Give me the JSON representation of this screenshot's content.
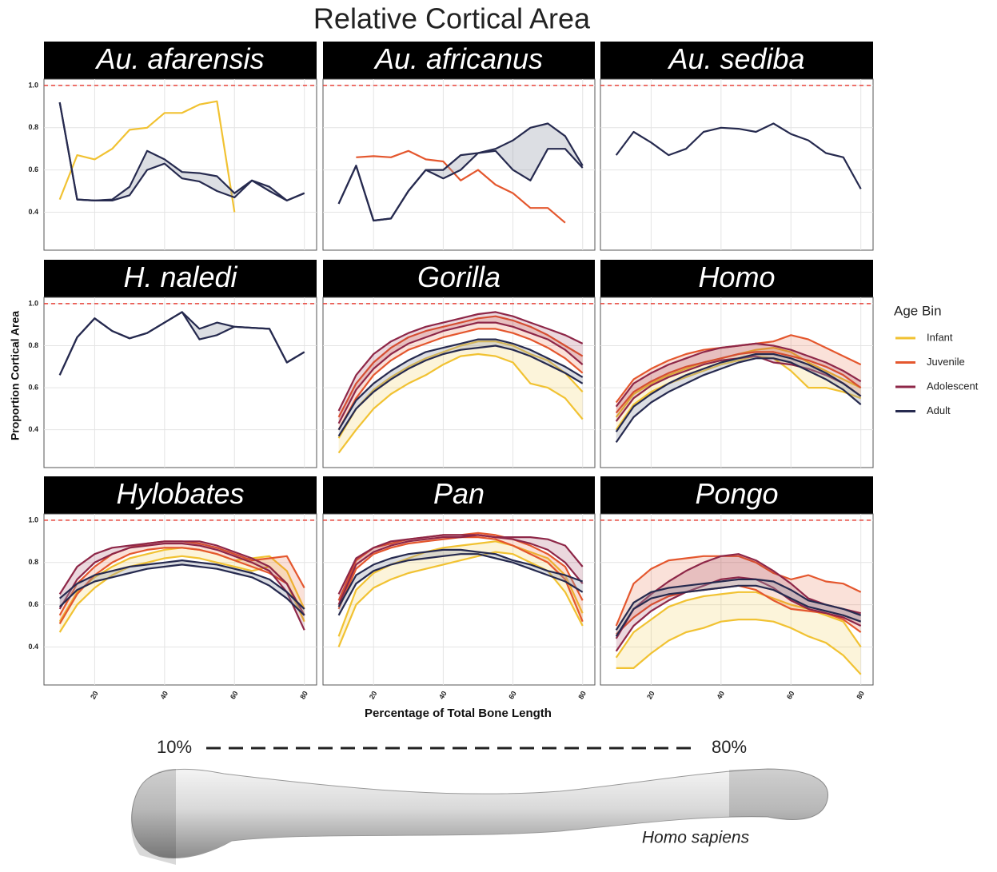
{
  "chart_data": {
    "type": "line",
    "title": "Relative Cortical Area",
    "x_label": "Percentage of Total Bone Length",
    "y_label": "Proportion Cortical Area",
    "legend_title": "Age Bin",
    "legend": [
      {
        "name": "Infant",
        "color": "#f1c232"
      },
      {
        "name": "Juvenile",
        "color": "#e4572e"
      },
      {
        "name": "Adolescent",
        "color": "#8e2748"
      },
      {
        "name": "Adult",
        "color": "#262a4f"
      }
    ],
    "grid": true,
    "hline": 1,
    "hline_color": "#e8433a",
    "xlim": [
      5.5,
      83.5
    ],
    "xticks": [
      20,
      40,
      60,
      80
    ],
    "ylim": [
      0.22,
      1.03
    ],
    "yticks": [
      0.4,
      0.6,
      0.8,
      {
        "value": 1,
        "label": "1.0"
      }
    ],
    "x": [
      10,
      15,
      20,
      25,
      30,
      35,
      40,
      45,
      50,
      55,
      60,
      65,
      70,
      75,
      80
    ],
    "facets": [
      {
        "title": "Au. afarensis",
        "series": [
          {
            "name": "Infant",
            "values": [
              0.46,
              0.67,
              0.65,
              0.7,
              0.79,
              0.8,
              0.87,
              0.87,
              0.91,
              0.925,
              0.4,
              null,
              null,
              null,
              null
            ]
          },
          {
            "name": "Adult",
            "lower": [
              0.92,
              0.46,
              0.455,
              0.455,
              0.48,
              0.6,
              0.63,
              0.56,
              0.545,
              0.5,
              0.47,
              0.55,
              0.5,
              0.455,
              0.49
            ],
            "upper": [
              0.92,
              0.46,
              0.455,
              0.46,
              0.52,
              0.69,
              0.65,
              0.59,
              0.585,
              0.57,
              0.49,
              0.55,
              0.52,
              0.455,
              0.49
            ]
          }
        ]
      },
      {
        "title": "Au. africanus",
        "series": [
          {
            "name": "Juvenile",
            "values": [
              null,
              0.66,
              0.665,
              0.66,
              0.69,
              0.65,
              0.64,
              0.55,
              0.6,
              0.53,
              0.49,
              0.42,
              0.42,
              0.35,
              null
            ]
          },
          {
            "name": "Adult",
            "lower": [
              0.44,
              0.62,
              0.36,
              0.37,
              0.5,
              0.6,
              0.56,
              0.6,
              0.68,
              0.69,
              0.6,
              0.55,
              0.7,
              0.7,
              0.61
            ],
            "upper": [
              0.44,
              0.62,
              0.36,
              0.37,
              0.5,
              0.6,
              0.6,
              0.67,
              0.68,
              0.7,
              0.74,
              0.8,
              0.82,
              0.76,
              0.62
            ]
          }
        ]
      },
      {
        "title": "Au. sediba",
        "series": [
          {
            "name": "Adult",
            "values": [
              0.67,
              0.78,
              0.73,
              0.67,
              0.7,
              0.78,
              0.8,
              0.795,
              0.78,
              0.82,
              0.77,
              0.74,
              0.68,
              0.66,
              0.51
            ]
          }
        ]
      },
      {
        "title": "H. naledi",
        "series": [
          {
            "name": "Adult",
            "lower": [
              0.66,
              0.84,
              0.93,
              0.87,
              0.835,
              0.86,
              0.91,
              0.96,
              0.83,
              0.85,
              0.89,
              0.885,
              0.88,
              0.72,
              0.77
            ],
            "upper": [
              0.66,
              0.84,
              0.93,
              0.87,
              0.835,
              0.86,
              0.91,
              0.96,
              0.88,
              0.91,
              0.89,
              0.885,
              0.88,
              0.72,
              0.77
            ]
          }
        ]
      },
      {
        "title": "Gorilla",
        "series": [
          {
            "name": "Infant",
            "lower": [
              0.29,
              0.4,
              0.5,
              0.57,
              0.62,
              0.66,
              0.71,
              0.75,
              0.76,
              0.75,
              0.72,
              0.62,
              0.6,
              0.55,
              0.45
            ],
            "upper": [
              0.36,
              0.5,
              0.59,
              0.65,
              0.7,
              0.74,
              0.77,
              0.8,
              0.82,
              0.82,
              0.8,
              0.76,
              0.73,
              0.67,
              0.58
            ]
          },
          {
            "name": "Juvenile",
            "lower": [
              0.4,
              0.55,
              0.66,
              0.73,
              0.78,
              0.81,
              0.84,
              0.86,
              0.88,
              0.88,
              0.86,
              0.83,
              0.79,
              0.74,
              0.67
            ],
            "upper": [
              0.46,
              0.62,
              0.72,
              0.79,
              0.84,
              0.87,
              0.89,
              0.91,
              0.93,
              0.94,
              0.92,
              0.89,
              0.85,
              0.8,
              0.75
            ]
          },
          {
            "name": "Adolescent",
            "lower": [
              0.43,
              0.59,
              0.69,
              0.76,
              0.81,
              0.84,
              0.87,
              0.89,
              0.91,
              0.91,
              0.89,
              0.86,
              0.83,
              0.78,
              0.71
            ],
            "upper": [
              0.49,
              0.66,
              0.76,
              0.82,
              0.86,
              0.89,
              0.91,
              0.93,
              0.95,
              0.96,
              0.94,
              0.91,
              0.88,
              0.85,
              0.81
            ]
          },
          {
            "name": "Adult",
            "lower": [
              0.37,
              0.5,
              0.58,
              0.64,
              0.69,
              0.73,
              0.76,
              0.78,
              0.79,
              0.8,
              0.78,
              0.75,
              0.71,
              0.67,
              0.62
            ],
            "upper": [
              0.4,
              0.54,
              0.62,
              0.68,
              0.73,
              0.77,
              0.79,
              0.81,
              0.83,
              0.83,
              0.81,
              0.78,
              0.74,
              0.7,
              0.65
            ]
          }
        ]
      },
      {
        "title": "Homo",
        "series": [
          {
            "name": "Infant",
            "lower": [
              0.4,
              0.52,
              0.58,
              0.62,
              0.65,
              0.68,
              0.71,
              0.73,
              0.75,
              0.74,
              0.68,
              0.6,
              0.6,
              0.58,
              0.55
            ],
            "upper": [
              0.46,
              0.57,
              0.62,
              0.66,
              0.69,
              0.72,
              0.74,
              0.76,
              0.78,
              0.79,
              0.77,
              0.72,
              0.68,
              0.64,
              0.6
            ]
          },
          {
            "name": "Juvenile",
            "lower": [
              0.48,
              0.58,
              0.63,
              0.67,
              0.7,
              0.72,
              0.74,
              0.76,
              0.77,
              0.77,
              0.75,
              0.73,
              0.7,
              0.66,
              0.6
            ],
            "upper": [
              0.53,
              0.64,
              0.69,
              0.73,
              0.76,
              0.78,
              0.79,
              0.8,
              0.81,
              0.82,
              0.85,
              0.83,
              0.79,
              0.75,
              0.71
            ]
          },
          {
            "name": "Adolescent",
            "lower": [
              0.44,
              0.55,
              0.61,
              0.65,
              0.68,
              0.71,
              0.73,
              0.74,
              0.75,
              0.72,
              0.71,
              0.69,
              0.66,
              0.62,
              0.56
            ],
            "upper": [
              0.51,
              0.62,
              0.67,
              0.71,
              0.74,
              0.77,
              0.79,
              0.8,
              0.81,
              0.8,
              0.78,
              0.75,
              0.72,
              0.68,
              0.63
            ]
          },
          {
            "name": "Adult",
            "lower": [
              0.34,
              0.46,
              0.53,
              0.58,
              0.62,
              0.66,
              0.69,
              0.72,
              0.74,
              0.74,
              0.72,
              0.68,
              0.64,
              0.59,
              0.52
            ],
            "upper": [
              0.39,
              0.51,
              0.57,
              0.62,
              0.66,
              0.69,
              0.72,
              0.74,
              0.76,
              0.76,
              0.74,
              0.71,
              0.67,
              0.62,
              0.56
            ]
          }
        ]
      },
      {
        "title": "Hylobates",
        "series": [
          {
            "name": "Infant",
            "lower": [
              0.47,
              0.6,
              0.68,
              0.74,
              0.78,
              0.8,
              0.82,
              0.83,
              0.82,
              0.8,
              0.78,
              0.76,
              0.78,
              0.7,
              0.52
            ],
            "upper": [
              0.52,
              0.66,
              0.73,
              0.78,
              0.82,
              0.84,
              0.86,
              0.87,
              0.86,
              0.84,
              0.81,
              0.82,
              0.83,
              0.76,
              0.58
            ]
          },
          {
            "name": "Juvenile",
            "lower": [
              0.51,
              0.65,
              0.74,
              0.8,
              0.84,
              0.86,
              0.87,
              0.87,
              0.86,
              0.84,
              0.81,
              0.78,
              0.75,
              0.7,
              0.55
            ],
            "upper": [
              0.55,
              0.7,
              0.78,
              0.84,
              0.87,
              0.89,
              0.9,
              0.9,
              0.89,
              0.87,
              0.84,
              0.81,
              0.82,
              0.83,
              0.68
            ]
          },
          {
            "name": "Adolescent",
            "lower": [
              0.58,
              0.72,
              0.8,
              0.84,
              0.87,
              0.88,
              0.89,
              0.89,
              0.88,
              0.86,
              0.83,
              0.8,
              0.76,
              0.66,
              0.48
            ],
            "upper": [
              0.65,
              0.78,
              0.84,
              0.87,
              0.88,
              0.89,
              0.9,
              0.9,
              0.9,
              0.88,
              0.85,
              0.82,
              0.78,
              0.7,
              0.55
            ]
          },
          {
            "name": "Adult",
            "lower": [
              0.59,
              0.67,
              0.71,
              0.73,
              0.75,
              0.77,
              0.78,
              0.79,
              0.78,
              0.77,
              0.75,
              0.73,
              0.69,
              0.63,
              0.55
            ],
            "upper": [
              0.63,
              0.7,
              0.74,
              0.76,
              0.78,
              0.79,
              0.8,
              0.81,
              0.8,
              0.79,
              0.77,
              0.75,
              0.72,
              0.66,
              0.58
            ]
          }
        ]
      },
      {
        "title": "Pan",
        "series": [
          {
            "name": "Infant",
            "lower": [
              0.4,
              0.6,
              0.68,
              0.72,
              0.75,
              0.77,
              0.79,
              0.81,
              0.83,
              0.85,
              0.84,
              0.8,
              0.76,
              0.66,
              0.5
            ],
            "upper": [
              0.45,
              0.67,
              0.75,
              0.79,
              0.82,
              0.85,
              0.87,
              0.88,
              0.89,
              0.9,
              0.88,
              0.85,
              0.82,
              0.74,
              0.56
            ]
          },
          {
            "name": "Juvenile",
            "lower": [
              0.58,
              0.77,
              0.84,
              0.87,
              0.89,
              0.9,
              0.91,
              0.92,
              0.92,
              0.91,
              0.88,
              0.84,
              0.8,
              0.72,
              0.52
            ],
            "upper": [
              0.62,
              0.81,
              0.87,
              0.89,
              0.91,
              0.92,
              0.93,
              0.93,
              0.94,
              0.93,
              0.91,
              0.88,
              0.84,
              0.78,
              0.62
            ]
          },
          {
            "name": "Adolescent",
            "lower": [
              0.6,
              0.79,
              0.85,
              0.88,
              0.9,
              0.91,
              0.92,
              0.92,
              0.93,
              0.92,
              0.91,
              0.89,
              0.86,
              0.8,
              0.7
            ],
            "upper": [
              0.65,
              0.82,
              0.87,
              0.9,
              0.91,
              0.92,
              0.93,
              0.93,
              0.93,
              0.92,
              0.92,
              0.92,
              0.91,
              0.88,
              0.78
            ]
          },
          {
            "name": "Adult",
            "lower": [
              0.55,
              0.7,
              0.76,
              0.79,
              0.81,
              0.82,
              0.83,
              0.84,
              0.84,
              0.82,
              0.8,
              0.77,
              0.74,
              0.71,
              0.66
            ],
            "upper": [
              0.59,
              0.74,
              0.79,
              0.82,
              0.84,
              0.85,
              0.86,
              0.86,
              0.85,
              0.84,
              0.81,
              0.79,
              0.76,
              0.74,
              0.71
            ]
          }
        ]
      },
      {
        "title": "Pongo",
        "series": [
          {
            "name": "Infant",
            "lower": [
              0.3,
              0.3,
              0.37,
              0.43,
              0.47,
              0.49,
              0.52,
              0.53,
              0.53,
              0.52,
              0.49,
              0.45,
              0.42,
              0.36,
              0.27
            ],
            "upper": [
              0.35,
              0.47,
              0.53,
              0.59,
              0.62,
              0.64,
              0.65,
              0.66,
              0.66,
              0.63,
              0.6,
              0.58,
              0.55,
              0.52,
              0.4
            ]
          },
          {
            "name": "Juvenile",
            "lower": [
              0.46,
              0.54,
              0.6,
              0.64,
              0.66,
              0.67,
              0.68,
              0.69,
              0.67,
              0.62,
              0.58,
              0.57,
              0.56,
              0.53,
              0.47
            ],
            "upper": [
              0.5,
              0.7,
              0.77,
              0.81,
              0.82,
              0.83,
              0.83,
              0.83,
              0.8,
              0.75,
              0.72,
              0.74,
              0.71,
              0.7,
              0.66
            ]
          },
          {
            "name": "Adolescent",
            "lower": [
              0.38,
              0.5,
              0.57,
              0.62,
              0.66,
              0.69,
              0.72,
              0.73,
              0.72,
              0.68,
              0.62,
              0.58,
              0.56,
              0.54,
              0.5
            ],
            "upper": [
              0.44,
              0.58,
              0.65,
              0.71,
              0.76,
              0.8,
              0.83,
              0.84,
              0.81,
              0.76,
              0.7,
              0.63,
              0.6,
              0.58,
              0.56
            ]
          },
          {
            "name": "Adult",
            "lower": [
              0.45,
              0.58,
              0.63,
              0.65,
              0.66,
              0.67,
              0.68,
              0.69,
              0.69,
              0.67,
              0.63,
              0.59,
              0.57,
              0.55,
              0.52
            ],
            "upper": [
              0.48,
              0.61,
              0.66,
              0.68,
              0.69,
              0.7,
              0.71,
              0.72,
              0.72,
              0.71,
              0.67,
              0.62,
              0.6,
              0.58,
              0.55
            ]
          }
        ]
      }
    ],
    "annotations": {
      "start": "10%",
      "end": "80%",
      "specimen": "Homo sapiens"
    }
  }
}
